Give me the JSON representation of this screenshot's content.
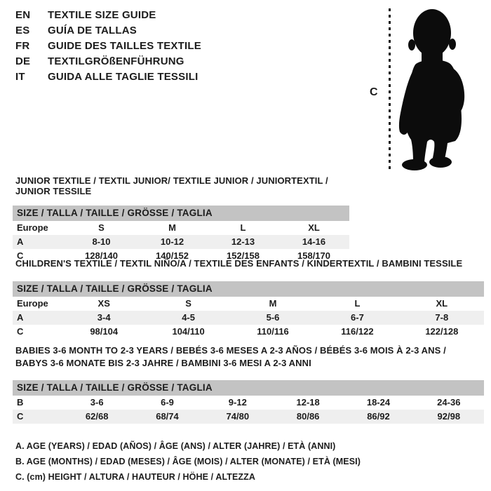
{
  "colors": {
    "background": "#ffffff",
    "text": "#1c1c1c",
    "table_header_bg": "#c3c3c3",
    "row_stripe_bg": "#efefef",
    "silhouette": "#0c0c0c"
  },
  "languages": [
    {
      "code": "EN",
      "label": "TEXTILE SIZE GUIDE"
    },
    {
      "code": "ES",
      "label": "GUÍA DE TALLAS"
    },
    {
      "code": "FR",
      "label": "GUIDE DES TAILLES TEXTILE"
    },
    {
      "code": "DE",
      "label": "TEXTILGRÖßENFÜHRUNG"
    },
    {
      "code": "IT",
      "label": "GUIDA ALLE TAGLIE TESSILI"
    }
  ],
  "figure": {
    "icon": "baby-silhouette",
    "measure_label": "C"
  },
  "tables": [
    {
      "title_lines": [
        "JUNIOR TEXTILE / TEXTIL JUNIOR/ TEXTILE JUNIOR / JUNIORTEXTIL / JUNIOR TESSILE"
      ],
      "size_header": "SIZE / TALLA / TAILLE / GRÖSSE / TAGLIA",
      "rows": [
        {
          "label": "Europe",
          "values": [
            "S",
            "M",
            "L",
            "XL"
          ],
          "shaded": false
        },
        {
          "label": "A",
          "values": [
            "8-10",
            "10-12",
            "12-13",
            "14-16"
          ],
          "shaded": true
        },
        {
          "label": "C",
          "values": [
            "128/140",
            "140/152",
            "152/158",
            "158/170"
          ],
          "shaded": false
        }
      ]
    },
    {
      "title_lines": [
        "CHILDREN'S TEXTILE / TEXTIL NIÑO/A / TEXTILE DES ENFANTS / KINDERTEXTIL / BAMBINI TESSILE"
      ],
      "size_header": "SIZE / TALLA / TAILLE / GRÖSSE / TAGLIA",
      "rows": [
        {
          "label": "Europe",
          "values": [
            "XS",
            "S",
            "M",
            "L",
            "XL"
          ],
          "shaded": false
        },
        {
          "label": "A",
          "values": [
            "3-4",
            "4-5",
            "5-6",
            "6-7",
            "7-8"
          ],
          "shaded": true
        },
        {
          "label": "C",
          "values": [
            "98/104",
            "104/110",
            "110/116",
            "116/122",
            "122/128"
          ],
          "shaded": false
        }
      ]
    },
    {
      "title_lines": [
        "BABIES 3-6 MONTH TO 2-3 YEARS / BEBÉS 3-6 MESES A 2-3 AÑOS / BÉBÉS 3-6 MOIS À 2-3 ANS /",
        "BABYS 3-6 MONATE BIS 2-3 JAHRE / BAMBINI 3-6 MESI A 2-3 ANNI"
      ],
      "size_header": "SIZE / TALLA / TAILLE / GRÖSSE / TAGLIA",
      "rows": [
        {
          "label": "B",
          "values": [
            "3-6",
            "6-9",
            "9-12",
            "12-18",
            "18-24",
            "24-36"
          ],
          "shaded": false
        },
        {
          "label": "C",
          "values": [
            "62/68",
            "68/74",
            "74/80",
            "80/86",
            "86/92",
            "92/98"
          ],
          "shaded": true
        }
      ]
    }
  ],
  "footnotes": [
    "A. AGE (YEARS) / EDAD (AÑOS) / ÂGE (ANS) / ALTER (JAHRE) / ETÀ (ANNI)",
    "B. AGE (MONTHS) / EDAD (MESES) / ÂGE (MOIS) / ALTER (MONATE) / ETÀ (MESI)",
    "C. (cm) HEIGHT / ALTURA / HAUTEUR / HÖHE / ALTEZZA"
  ]
}
